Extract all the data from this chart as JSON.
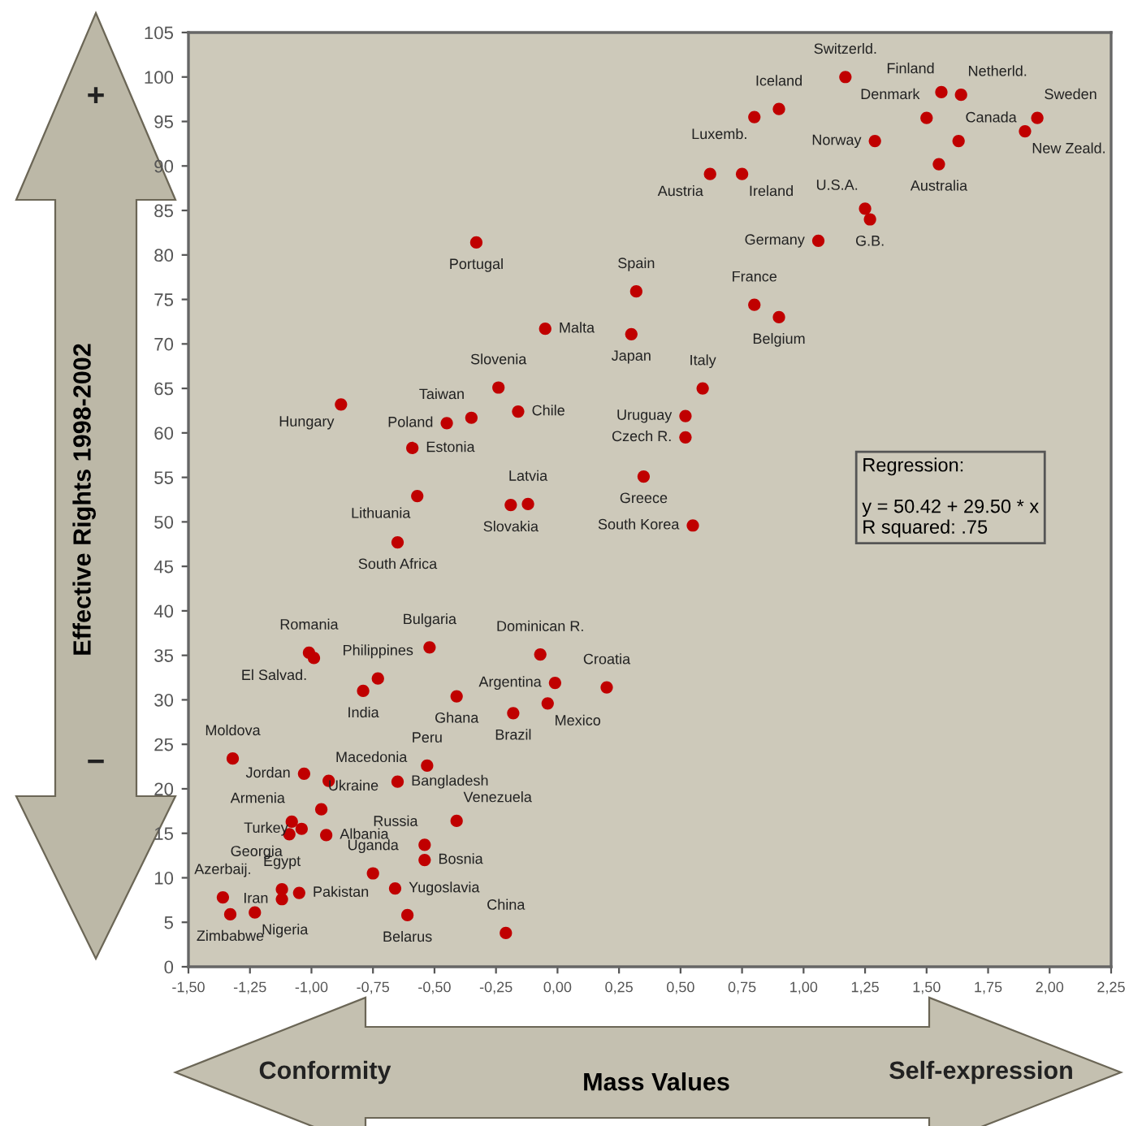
{
  "chart_data": {
    "type": "scatter",
    "xlabel": "Mass Values",
    "ylabel": "Effective Rights 1998-2002",
    "xlim": [
      -1.5,
      2.25
    ],
    "ylim": [
      0,
      105
    ],
    "xticks": [
      {
        "value": -1.5,
        "label": "-1,50"
      },
      {
        "value": -1.25,
        "label": "-1,25"
      },
      {
        "value": -1.0,
        "label": "-1,00"
      },
      {
        "value": -0.75,
        "label": "-0,75"
      },
      {
        "value": -0.5,
        "label": "-0,50"
      },
      {
        "value": -0.25,
        "label": "-0,25"
      },
      {
        "value": 0,
        "label": "0,00"
      },
      {
        "value": 0.25,
        "label": "0,25"
      },
      {
        "value": 0.5,
        "label": "0,50"
      },
      {
        "value": 0.75,
        "label": "0,75"
      },
      {
        "value": 1.0,
        "label": "1,00"
      },
      {
        "value": 1.25,
        "label": "1,25"
      },
      {
        "value": 1.5,
        "label": "1,50"
      },
      {
        "value": 1.75,
        "label": "1,75"
      },
      {
        "value": 2.0,
        "label": "2,00"
      },
      {
        "value": 2.25,
        "label": "2,25"
      }
    ],
    "yticks": [
      0,
      5,
      10,
      15,
      20,
      25,
      30,
      35,
      40,
      45,
      50,
      55,
      60,
      65,
      70,
      75,
      80,
      85,
      90,
      95,
      100,
      105
    ],
    "marker": "circle",
    "grid": false,
    "series": [
      {
        "color": "#c00000",
        "x": [
          1.17,
          0.9,
          0.8,
          1.56,
          1.64,
          1.5,
          1.63,
          1.95,
          1.9,
          1.29,
          1.55,
          0.62,
          0.75,
          1.25,
          1.27,
          1.06,
          0.8,
          0.9,
          0.59,
          0.52,
          0.52,
          -0.33,
          0.32,
          -0.05,
          0.3,
          -0.24,
          -0.35,
          -0.45,
          -0.16,
          -0.88,
          -0.59,
          0.35,
          -0.12,
          -0.19,
          -0.57,
          -0.65,
          0.55,
          0.2,
          -1.01,
          -0.99,
          -0.73,
          -0.79,
          -0.52,
          -0.41,
          -0.07,
          -0.01,
          -0.04,
          -0.18,
          -1.32,
          -1.03,
          -0.93,
          -0.53,
          -0.65,
          -0.96,
          -1.08,
          -1.04,
          -1.09,
          -0.94,
          -0.41,
          -0.54,
          -0.54,
          -0.75,
          -0.66,
          -1.12,
          -1.12,
          -1.05,
          -1.36,
          -1.33,
          -1.23,
          -0.61,
          -0.21
        ],
        "values": [
          100,
          96.4,
          95.5,
          98.3,
          98,
          95.4,
          92.8,
          95.4,
          93.9,
          92.8,
          90.2,
          89.1,
          89.1,
          85.2,
          84,
          81.6,
          74.4,
          73,
          65,
          61.9,
          59.5,
          81.4,
          75.9,
          71.7,
          71.1,
          65.1,
          61.7,
          61.1,
          62.4,
          63.2,
          58.3,
          55.1,
          52,
          51.9,
          52.9,
          47.7,
          49.6,
          31.4,
          35.3,
          34.7,
          32.4,
          31,
          35.9,
          30.4,
          35.1,
          31.9,
          29.6,
          28.5,
          23.4,
          21.7,
          20.9,
          22.6,
          20.8,
          17.7,
          16.3,
          15.5,
          14.9,
          14.8,
          16.4,
          13.7,
          12,
          10.5,
          8.8,
          8.7,
          7.6,
          8.3,
          7.8,
          5.9,
          6.1,
          5.8,
          3.8
        ]
      }
    ],
    "annotations": [
      "Regression:\n\ny = 50.42 + 29.50 * x\nR squared: .75",
      "Conformity",
      "Self-expression",
      "+",
      "−",
      {
        "text": "Switzerld.",
        "x": 1.17,
        "y": 100
      },
      {
        "text": "Iceland",
        "x": 0.9,
        "y": 96.4
      },
      {
        "text": "Luxemb.",
        "x": 0.8,
        "y": 95.5
      },
      {
        "text": "Finland",
        "x": 1.56,
        "y": 98.3
      },
      {
        "text": "Netherld.",
        "x": 1.64,
        "y": 98
      },
      {
        "text": "Denmark",
        "x": 1.5,
        "y": 95.4
      },
      {
        "text": "Canada",
        "x": 1.63,
        "y": 92.8
      },
      {
        "text": "Sweden",
        "x": 1.95,
        "y": 95.4
      },
      {
        "text": "New Zeald.",
        "x": 1.9,
        "y": 93.9
      },
      {
        "text": "Norway",
        "x": 1.29,
        "y": 92.8
      },
      {
        "text": "Australia",
        "x": 1.55,
        "y": 90.2
      },
      {
        "text": "Austria",
        "x": 0.62,
        "y": 89.1
      },
      {
        "text": "Ireland",
        "x": 0.75,
        "y": 89.1
      },
      {
        "text": "U.S.A.",
        "x": 1.25,
        "y": 85.2
      },
      {
        "text": "G.B.",
        "x": 1.27,
        "y": 84
      },
      {
        "text": "Germany",
        "x": 1.06,
        "y": 81.6
      },
      {
        "text": "France",
        "x": 0.8,
        "y": 74.4
      },
      {
        "text": "Belgium",
        "x": 0.9,
        "y": 73
      },
      {
        "text": "Italy",
        "x": 0.59,
        "y": 65
      },
      {
        "text": "Uruguay",
        "x": 0.52,
        "y": 61.9
      },
      {
        "text": "Czech R.",
        "x": 0.52,
        "y": 59.5
      },
      {
        "text": "Portugal",
        "x": -0.33,
        "y": 81.4
      },
      {
        "text": "Spain",
        "x": 0.32,
        "y": 75.9
      },
      {
        "text": "Malta",
        "x": -0.05,
        "y": 71.7
      },
      {
        "text": "Japan",
        "x": 0.3,
        "y": 71.1
      },
      {
        "text": "Slovenia",
        "x": -0.24,
        "y": 65.1
      },
      {
        "text": "Taiwan",
        "x": -0.35,
        "y": 61.7
      },
      {
        "text": "Poland",
        "x": -0.45,
        "y": 61.1
      },
      {
        "text": "Chile",
        "x": -0.16,
        "y": 62.4
      },
      {
        "text": "Hungary",
        "x": -0.88,
        "y": 63.2
      },
      {
        "text": "Estonia",
        "x": -0.59,
        "y": 58.3
      },
      {
        "text": "Greece",
        "x": 0.35,
        "y": 55.1
      },
      {
        "text": "Latvia",
        "x": -0.12,
        "y": 52
      },
      {
        "text": "Slovakia",
        "x": -0.19,
        "y": 51.9
      },
      {
        "text": "Lithuania",
        "x": -0.57,
        "y": 52.9
      },
      {
        "text": "South Africa",
        "x": -0.65,
        "y": 47.7
      },
      {
        "text": "South Korea",
        "x": 0.55,
        "y": 49.6
      },
      {
        "text": "Croatia",
        "x": 0.2,
        "y": 31.4
      },
      {
        "text": "Romania",
        "x": -1.01,
        "y": 35.3
      },
      {
        "text": "El Salvad.",
        "x": -0.99,
        "y": 34.7
      },
      {
        "text": "Philippines",
        "x": -0.73,
        "y": 32.4
      },
      {
        "text": "India",
        "x": -0.79,
        "y": 31
      },
      {
        "text": "Bulgaria",
        "x": -0.52,
        "y": 35.9
      },
      {
        "text": "Ghana",
        "x": -0.41,
        "y": 30.4
      },
      {
        "text": "Dominican R.",
        "x": -0.07,
        "y": 35.1
      },
      {
        "text": "Argentina",
        "x": -0.01,
        "y": 31.9
      },
      {
        "text": "Mexico",
        "x": -0.04,
        "y": 29.6
      },
      {
        "text": "Brazil",
        "x": -0.18,
        "y": 28.5
      },
      {
        "text": "Moldova",
        "x": -1.32,
        "y": 23.4
      },
      {
        "text": "Jordan",
        "x": -1.03,
        "y": 21.7
      },
      {
        "text": "Macedonia",
        "x": -0.93,
        "y": 20.9
      },
      {
        "text": "Peru",
        "x": -0.53,
        "y": 22.6
      },
      {
        "text": "Bangladesh",
        "x": -0.65,
        "y": 20.8
      },
      {
        "text": "Ukraine",
        "x": -0.96,
        "y": 17.7
      },
      {
        "text": "Armenia",
        "x": -1.08,
        "y": 16.3
      },
      {
        "text": "Turkey",
        "x": -1.04,
        "y": 15.5
      },
      {
        "text": "Georgia",
        "x": -1.09,
        "y": 14.9
      },
      {
        "text": "Albania",
        "x": -0.94,
        "y": 14.8
      },
      {
        "text": "Venezuela",
        "x": -0.41,
        "y": 16.4
      },
      {
        "text": "Russia",
        "x": -0.54,
        "y": 13.7
      },
      {
        "text": "Bosnia",
        "x": -0.54,
        "y": 12
      },
      {
        "text": "Uganda",
        "x": -0.75,
        "y": 10.5
      },
      {
        "text": "Yugoslavia",
        "x": -0.66,
        "y": 8.8
      },
      {
        "text": "Egypt",
        "x": -1.12,
        "y": 8.7
      },
      {
        "text": "Iran",
        "x": -1.12,
        "y": 7.6
      },
      {
        "text": "Pakistan",
        "x": -1.05,
        "y": 8.3
      },
      {
        "text": "Azerbaij.",
        "x": -1.36,
        "y": 7.8
      },
      {
        "text": "Zimbabwe",
        "x": -1.33,
        "y": 5.9
      },
      {
        "text": "Nigeria",
        "x": -1.23,
        "y": 6.1
      },
      {
        "text": "Belarus",
        "x": -0.61,
        "y": 5.8
      },
      {
        "text": "China",
        "x": -0.21,
        "y": 3.8
      }
    ]
  }
}
